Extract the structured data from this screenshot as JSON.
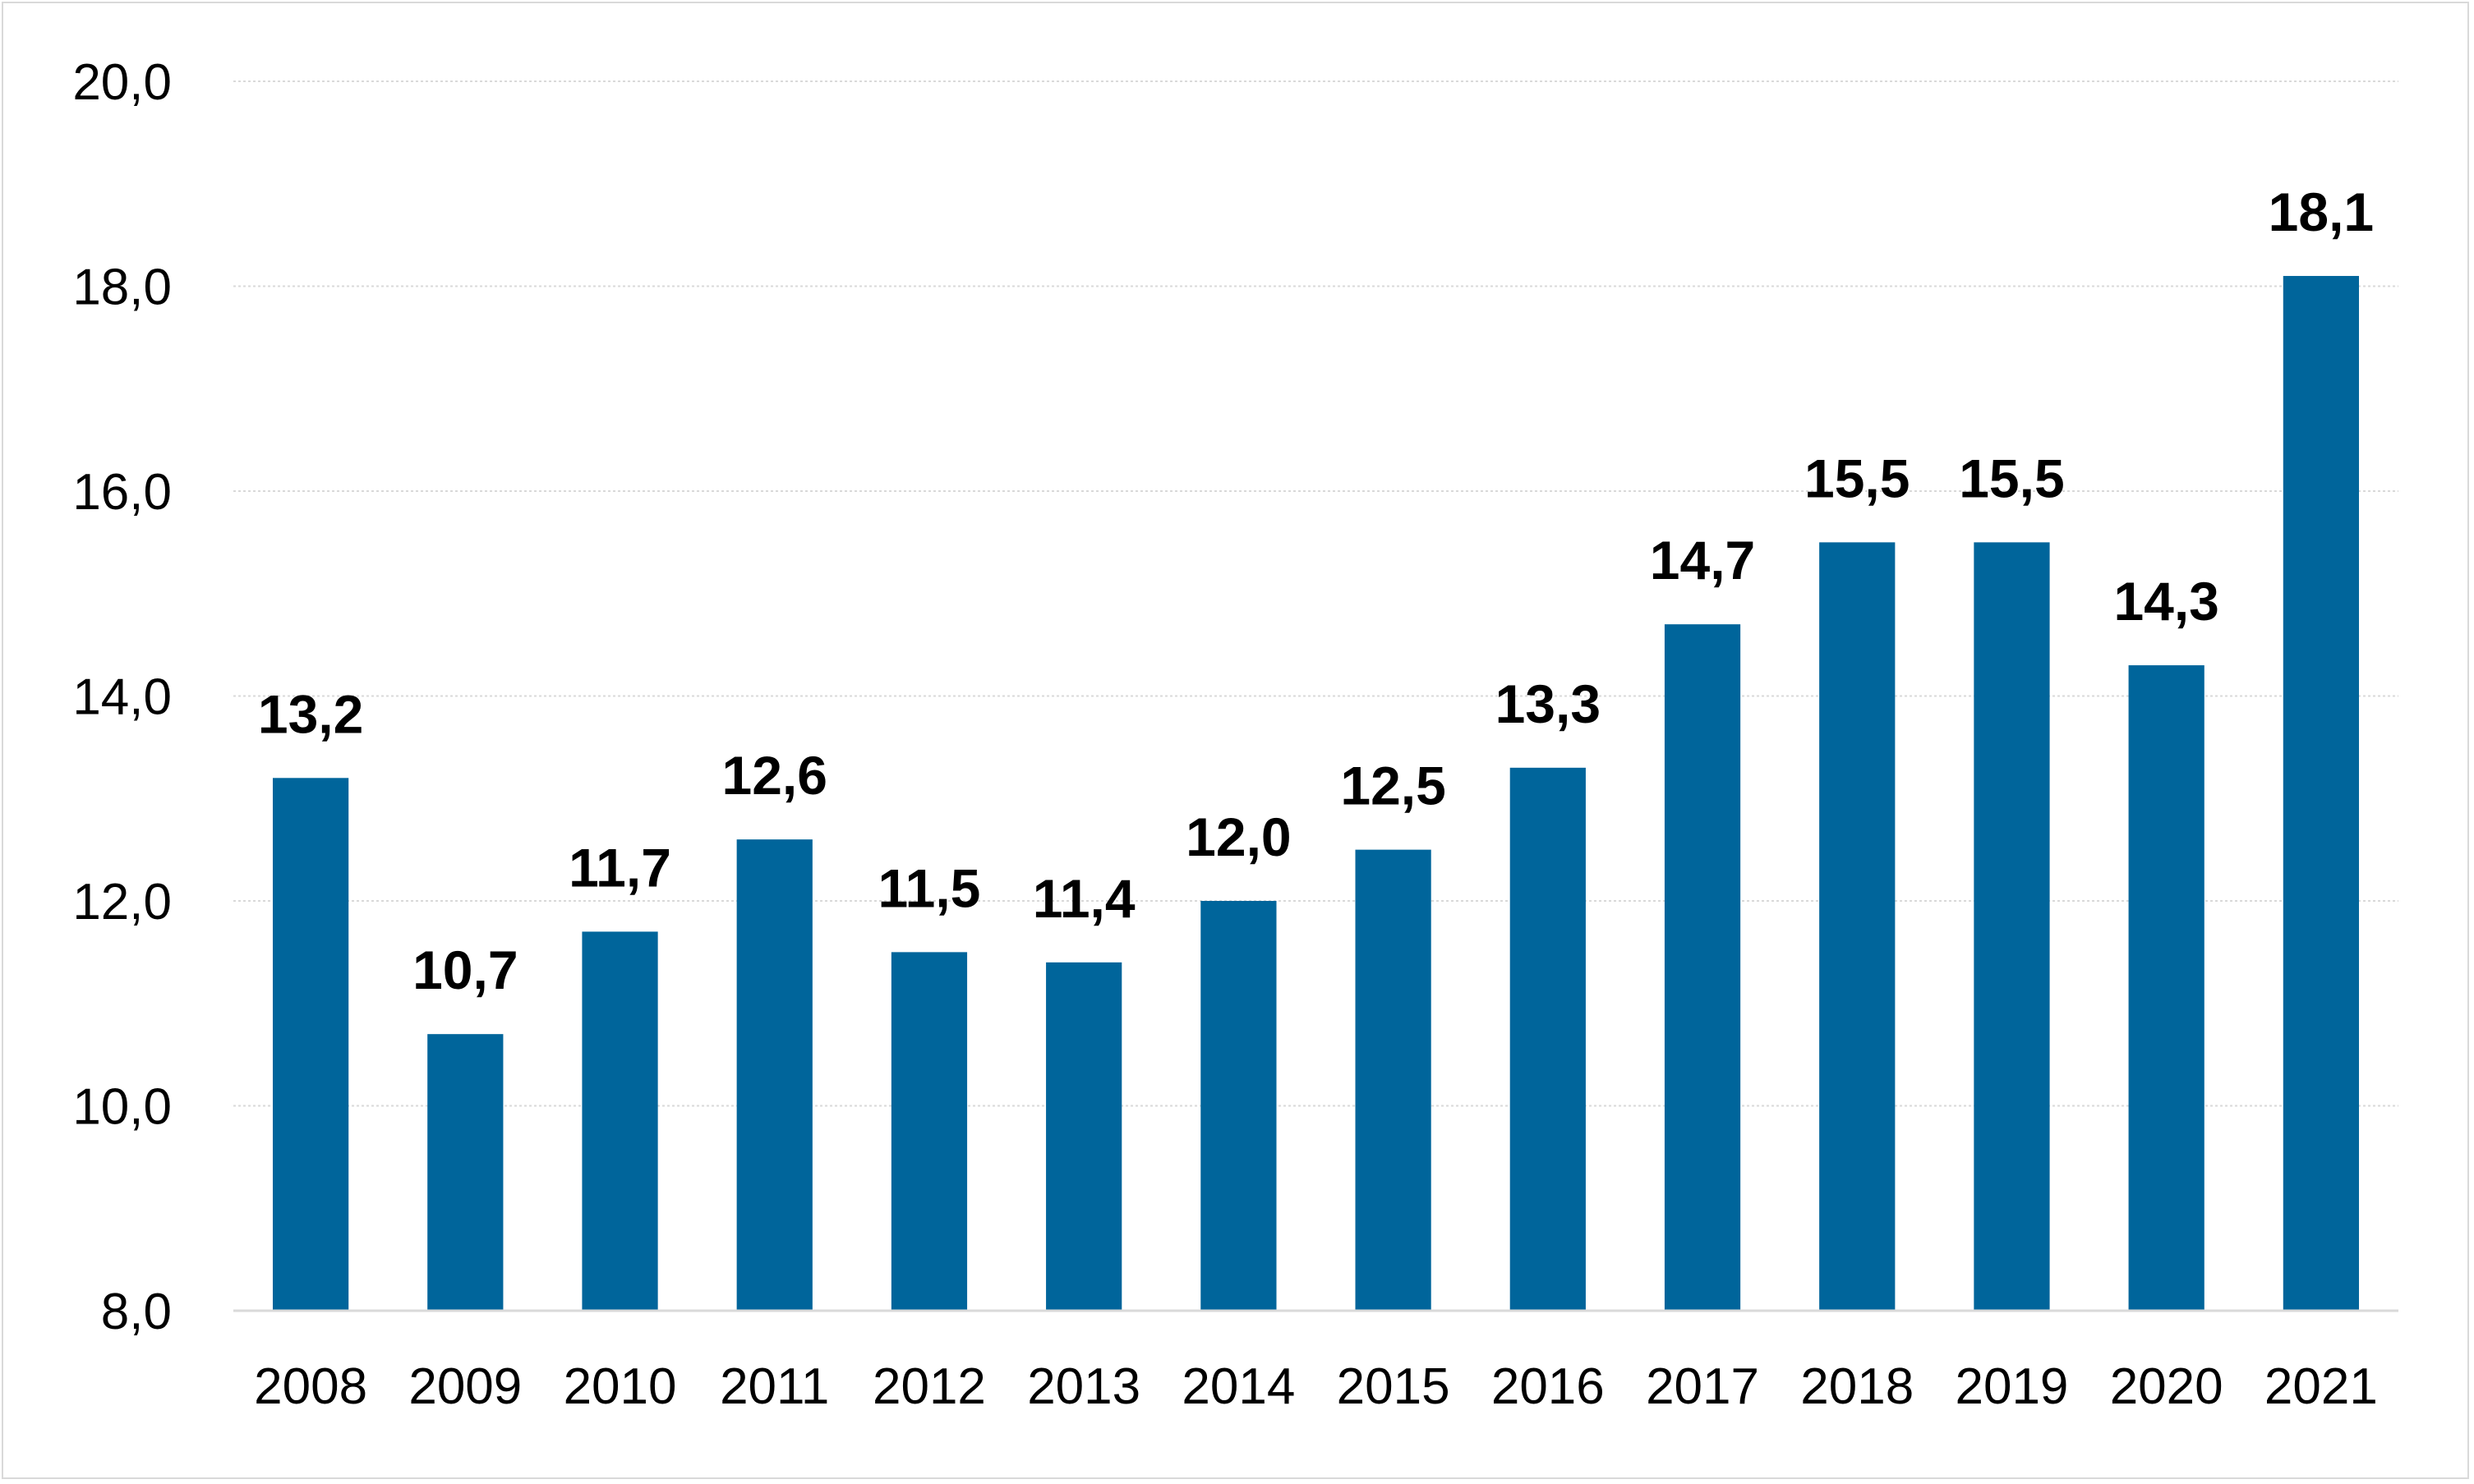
{
  "chart_data": {
    "type": "bar",
    "categories": [
      "2008",
      "2009",
      "2010",
      "2011",
      "2012",
      "2013",
      "2014",
      "2015",
      "2016",
      "2017",
      "2018",
      "2019",
      "2020",
      "2021"
    ],
    "values": [
      13.2,
      10.7,
      11.7,
      12.6,
      11.5,
      11.4,
      12.0,
      12.5,
      13.3,
      14.7,
      15.5,
      15.5,
      14.3,
      18.1
    ],
    "data_labels": [
      "13,2",
      "10,7",
      "11,7",
      "12,6",
      "11,5",
      "11,4",
      "12,0",
      "12,5",
      "13,3",
      "14,7",
      "15,5",
      "15,5",
      "14,3",
      "18,1"
    ],
    "y_ticks": [
      8,
      10,
      12,
      14,
      16,
      18,
      20
    ],
    "y_tick_labels": [
      "8,0",
      "10,0",
      "12,0",
      "14,0",
      "16,0",
      "18,0",
      "20,0"
    ],
    "ylim": [
      8,
      20
    ],
    "title": "",
    "xlabel": "",
    "ylabel": "",
    "grid": true,
    "legend": "none",
    "bar_color": "#00659b",
    "grid_color": "#d9d9d9"
  }
}
